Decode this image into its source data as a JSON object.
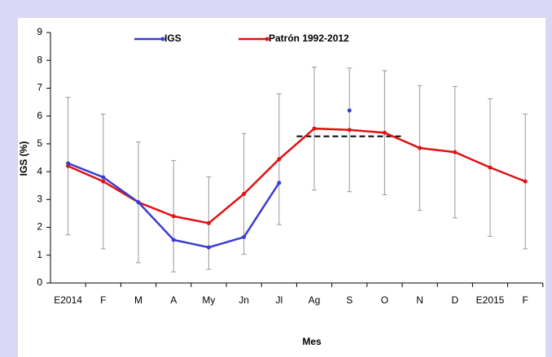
{
  "chart_data": {
    "type": "line",
    "x_label": "Mes",
    "y_label": "IGS (%)",
    "categories": [
      "E2014",
      "F",
      "M",
      "A",
      "My",
      "Jn",
      "Jl",
      "Ag",
      "S",
      "O",
      "N",
      "D",
      "E2015",
      "F"
    ],
    "series": [
      {
        "name": "IGS",
        "color": "#3c3cd2",
        "values": [
          4.3,
          3.8,
          2.9,
          1.55,
          1.28,
          1.65,
          3.6,
          null,
          6.2,
          null,
          null,
          null,
          null,
          null
        ]
      },
      {
        "name": "Patrón 1992-2012",
        "color": "#e01212",
        "values": [
          4.2,
          3.65,
          2.9,
          2.4,
          2.15,
          3.2,
          4.45,
          5.55,
          5.5,
          5.4,
          4.85,
          4.7,
          4.15,
          3.65
        ],
        "errors": [
          2.47,
          2.42,
          2.17,
          2.0,
          1.66,
          2.17,
          2.35,
          2.21,
          2.22,
          2.23,
          2.24,
          2.36,
          2.47,
          2.42
        ]
      }
    ],
    "reference_line": {
      "value": 5.27,
      "span": [
        "Ag",
        "O"
      ]
    },
    "ylim": [
      0,
      9
    ],
    "yticks": [
      0,
      1,
      2,
      3,
      4,
      5,
      6,
      7,
      8,
      9
    ],
    "grid": false,
    "legend": "top"
  }
}
